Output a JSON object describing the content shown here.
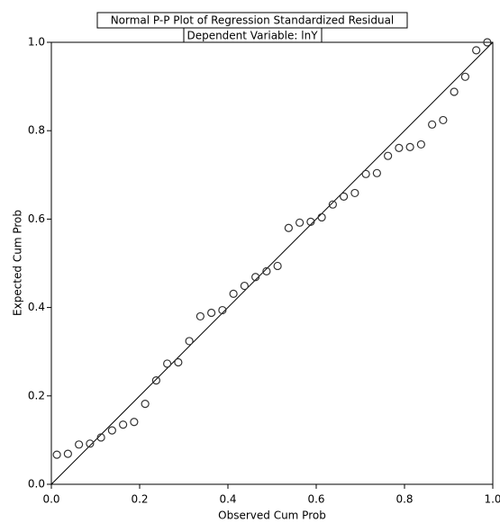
{
  "chart_data": {
    "type": "scatter",
    "title": "Normal P-P Plot of Regression Standardized Residual",
    "subtitle": "Dependent Variable: lnY",
    "x_label": "Observed Cum Prob",
    "y_label": "Expected Cum Prob",
    "color": "#333333",
    "xlim": [
      0,
      1
    ],
    "ylim": [
      0,
      1
    ],
    "xticks": [
      {
        "value": 0,
        "label": "0.0"
      },
      0.2,
      0.4,
      0.6,
      0.8,
      {
        "value": 1,
        "label": "1.0"
      }
    ],
    "yticks": [
      {
        "value": 0,
        "label": "0.0"
      },
      0.2,
      0.4,
      0.6,
      0.8,
      {
        "value": 1,
        "label": "1.0"
      }
    ],
    "x": [
      0.0125,
      0.0375,
      0.0625,
      0.0875,
      0.1125,
      0.1375,
      0.1625,
      0.1875,
      0.2125,
      0.2375,
      0.2625,
      0.2875,
      0.3125,
      0.3375,
      0.3625,
      0.3875,
      0.4125,
      0.4375,
      0.4625,
      0.4875,
      0.5125,
      0.5375,
      0.5625,
      0.5875,
      0.6125,
      0.6375,
      0.6625,
      0.6875,
      0.7125,
      0.7375,
      0.7625,
      0.7875,
      0.8125,
      0.8375,
      0.8625,
      0.8875,
      0.9125,
      0.9375,
      0.9625,
      0.9875
    ],
    "values": [
      0.067,
      0.069,
      0.09,
      0.092,
      0.106,
      0.122,
      0.135,
      0.141,
      0.182,
      0.235,
      0.273,
      0.276,
      0.324,
      0.38,
      0.388,
      0.394,
      0.431,
      0.449,
      0.469,
      0.482,
      0.494,
      0.58,
      0.592,
      0.594,
      0.604,
      0.633,
      0.651,
      0.659,
      0.702,
      0.704,
      0.743,
      0.761,
      0.763,
      0.769,
      0.814,
      0.824,
      0.888,
      0.922,
      0.982,
      1.0
    ]
  }
}
